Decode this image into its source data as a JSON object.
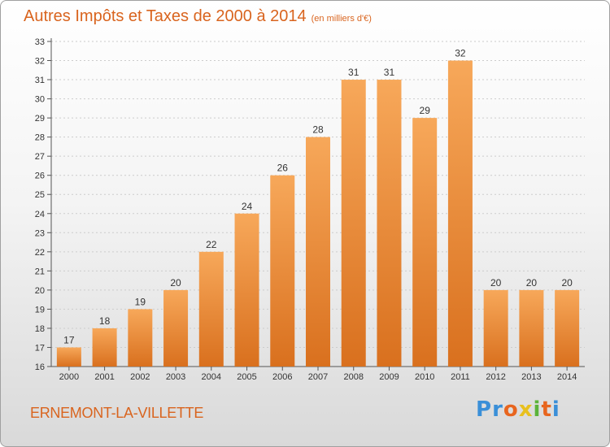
{
  "header": {
    "title": "Autres Impôts et Taxes de 2000 à 2014",
    "subtitle": "(en milliers d'€)"
  },
  "footer": {
    "commune": "ERNEMONT-LA-VILLETTE",
    "logo_letters": [
      "P",
      "r",
      "o",
      "x",
      "i",
      "t",
      "i"
    ],
    "logo_colors": [
      "#3a8fd8",
      "#3a8fd8",
      "#e8651e",
      "#e8c01e",
      "#5bb33a",
      "#e8651e",
      "#3a8fd8"
    ]
  },
  "colors": {
    "accent": "#d9641e",
    "bar_light": "#f7a85a",
    "bar_dark": "#d9701e",
    "grid": "#cccccc",
    "axis": "#555555"
  },
  "chart_data": {
    "type": "bar",
    "categories": [
      "2000",
      "2001",
      "2002",
      "2003",
      "2004",
      "2005",
      "2006",
      "2007",
      "2008",
      "2009",
      "2010",
      "2011",
      "2012",
      "2013",
      "2014"
    ],
    "values": [
      17,
      18,
      19,
      20,
      22,
      24,
      26,
      28,
      31,
      31,
      29,
      32,
      20,
      20,
      20
    ],
    "title": "Autres Impôts et Taxes de 2000 à 2014",
    "ylim": [
      16,
      33
    ],
    "y_ticks": [
      16,
      17,
      18,
      19,
      20,
      21,
      22,
      23,
      24,
      25,
      26,
      27,
      28,
      29,
      30,
      31,
      32,
      33
    ],
    "grid": true
  }
}
